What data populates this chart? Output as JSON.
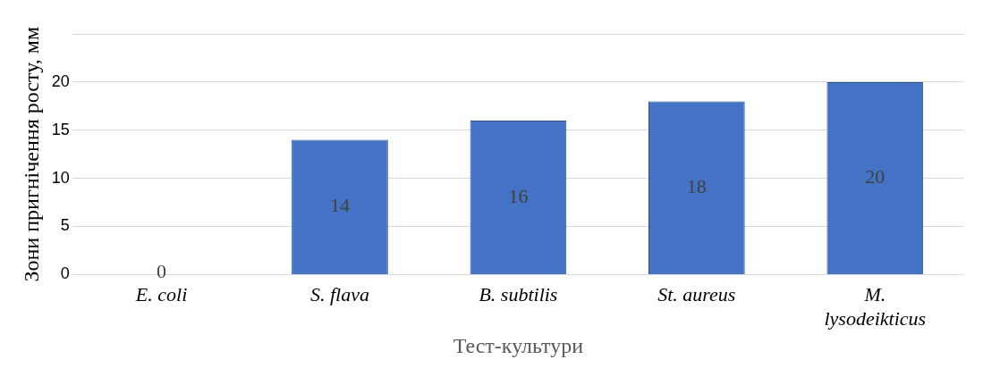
{
  "chart_data": {
    "type": "bar",
    "categories": [
      "E. coli",
      "S. flava",
      "B. subtilis",
      "St. aureus",
      "M. lysodeikticus"
    ],
    "values": [
      0,
      14,
      16,
      18,
      20
    ],
    "color": "#4472c4",
    "xlabel": "Тест-культури",
    "ylabel": "Зони пригнічення росту, мм",
    "ylim": [
      0,
      25
    ],
    "yticks": [
      0,
      5,
      10,
      15,
      20,
      {
        "value": 25,
        "label": null
      }
    ],
    "grid": "y",
    "data_labels": true,
    "legend": false
  }
}
